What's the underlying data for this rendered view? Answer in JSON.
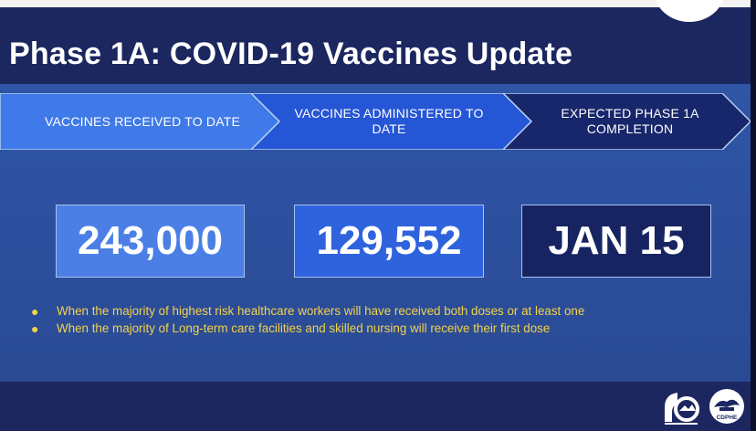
{
  "slide": {
    "title": "Phase 1A:  COVID-19 Vaccines Update"
  },
  "steps": [
    {
      "label": "VACCINES RECEIVED TO DATE"
    },
    {
      "label": "VACCINES ADMINISTERED TO DATE"
    },
    {
      "label": "EXPECTED PHASE 1A COMPLETION"
    }
  ],
  "stats": [
    {
      "value": "243,000"
    },
    {
      "value": "129,552"
    },
    {
      "value": "JAN 15"
    }
  ],
  "notes": [
    "When the majority of highest risk healthcare workers will have received both doses or at least one",
    "When the majority of Long-term care facilities and skilled nursing will receive their first dose"
  ],
  "logos": {
    "cdphe_label": "CDPHE"
  },
  "colors": {
    "title_band": "#1c2760",
    "step1": "#3f7ae8",
    "step2": "#2556d6",
    "step3": "#18276b",
    "bullet_text": "#f2d24a"
  }
}
